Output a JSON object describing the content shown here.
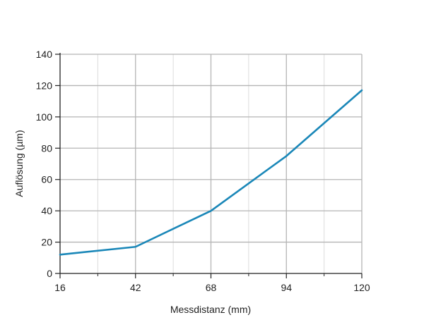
{
  "chart_data": {
    "type": "line",
    "title": "",
    "xlabel": "Messdistanz (mm)",
    "ylabel": "Auflösung (µm)",
    "xlim": [
      16,
      120
    ],
    "ylim": [
      0,
      140
    ],
    "x_ticks": [
      16,
      42,
      68,
      94,
      120
    ],
    "y_ticks": [
      0,
      20,
      40,
      60,
      80,
      100,
      120,
      140
    ],
    "grid": true,
    "series": [
      {
        "name": "",
        "color": "#1a87b8",
        "x": [
          16,
          42,
          68,
          94,
          120
        ],
        "y": [
          12,
          17,
          40,
          75,
          117
        ]
      }
    ]
  },
  "colors": {
    "line": "#1a87b8",
    "major_grid": "#b4b4b4",
    "minor_grid": "#dcdcdc",
    "axis": "#222222"
  }
}
